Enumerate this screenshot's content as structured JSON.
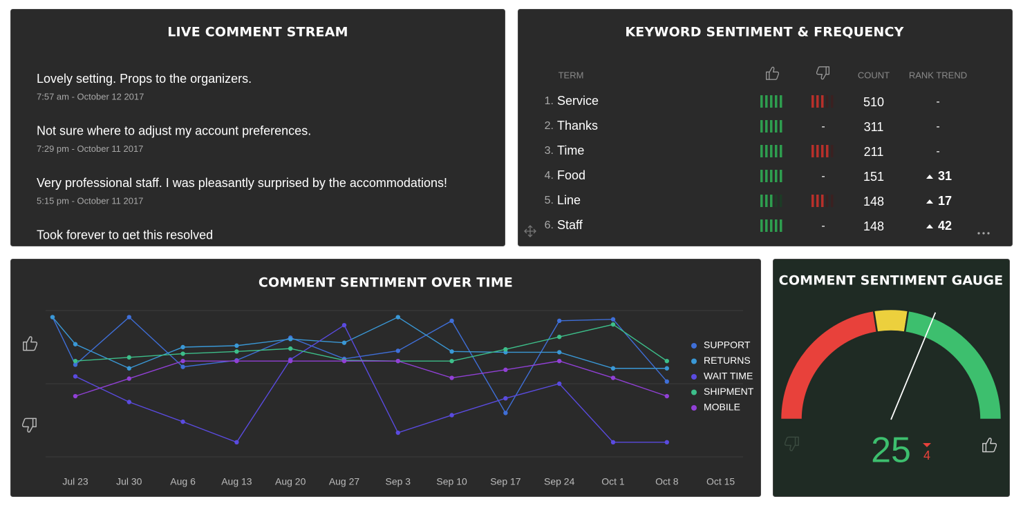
{
  "comment_stream": {
    "title": "LIVE COMMENT STREAM",
    "comments": [
      {
        "text": "Lovely setting. Props to the organizers.",
        "time": "7:57 am - October 12 2017"
      },
      {
        "text": "Not sure where to adjust my account preferences.",
        "time": "7:29 pm - October 11 2017"
      },
      {
        "text": "Very professional staff. I was pleasantly surprised by the accommodations!",
        "time": "5:15 pm - October 11 2017"
      },
      {
        "text": "Took forever to get this resolved",
        "time": ""
      }
    ]
  },
  "keyword_table": {
    "title": "KEYWORD SENTIMENT & FREQUENCY",
    "headers": {
      "term": "TERM",
      "count": "COUNT",
      "rank_trend": "RANK TREND"
    },
    "segments": 5,
    "rows": [
      {
        "rank": "1.",
        "term": "Service",
        "positive": 5,
        "negative": 3,
        "count": 510,
        "rank_trend": "-"
      },
      {
        "rank": "2.",
        "term": "Thanks",
        "positive": 5,
        "negative": "-",
        "count": 311,
        "rank_trend": "-"
      },
      {
        "rank": "3.",
        "term": "Time",
        "positive": 5,
        "negative": 4,
        "count": 211,
        "rank_trend": "-"
      },
      {
        "rank": "4.",
        "term": "Food",
        "positive": 5,
        "negative": "-",
        "count": 151,
        "rank_trend": 31
      },
      {
        "rank": "5.",
        "term": "Line",
        "positive": 3,
        "negative": 3,
        "count": 148,
        "rank_trend": 17
      },
      {
        "rank": "6.",
        "term": "Staff",
        "positive": 5,
        "negative": "-",
        "count": 148,
        "rank_trend": 42
      }
    ]
  },
  "chart_data": {
    "type": "line",
    "title": "COMMENT SENTIMENT OVER TIME",
    "categories": [
      null,
      "Jul 23",
      "Jul 30",
      "Aug 6",
      "Aug 13",
      "Aug 20",
      "Aug 27",
      "Sep 3",
      "Sep 10",
      "Sep 17",
      "Sep 24",
      "Oct 1",
      "Oct 8",
      "Oct 15"
    ],
    "ylim": [
      -1,
      1
    ],
    "yticks": [
      -1,
      0,
      1
    ],
    "grid": true,
    "series": [
      {
        "name": "SUPPORT",
        "color": "#3f6fd8",
        "values": [
          0.91,
          0.26,
          0.91,
          0.23,
          0.32,
          0.63,
          0.34,
          0.45,
          0.86,
          -0.4,
          0.86,
          0.88,
          0.03,
          null
        ]
      },
      {
        "name": "RETURNS",
        "color": "#3a98d6",
        "values": [
          0.91,
          0.54,
          0.21,
          0.5,
          0.52,
          0.61,
          0.56,
          0.91,
          0.44,
          0.43,
          0.43,
          0.21,
          0.21,
          null
        ]
      },
      {
        "name": "WAIT TIME",
        "color": "#5a4be0",
        "values": [
          null,
          0.1,
          -0.25,
          -0.52,
          -0.8,
          0.33,
          0.8,
          -0.67,
          -0.43,
          -0.2,
          0,
          -0.8,
          -0.8,
          null
        ]
      },
      {
        "name": "SHIPMENT",
        "color": "#3dbf8a",
        "values": [
          null,
          0.31,
          0.36,
          0.41,
          0.44,
          0.48,
          0.32,
          0.31,
          0.31,
          0.47,
          0.64,
          0.81,
          0.31,
          null
        ]
      },
      {
        "name": "MOBILE",
        "color": "#9140d6",
        "values": [
          null,
          -0.17,
          0.07,
          0.31,
          0.31,
          0.31,
          0.31,
          0.31,
          0.08,
          0.19,
          0.31,
          0.08,
          -0.17,
          null
        ]
      }
    ]
  },
  "gauge": {
    "title": "COMMENT SENTIMENT GAUGE",
    "min": -100,
    "max": 100,
    "value": 25,
    "change": 4,
    "bands": [
      {
        "from": -100,
        "to": -10,
        "color": "#e8413b"
      },
      {
        "from": -10,
        "to": 10,
        "color": "#ecd03d"
      },
      {
        "from": 10,
        "to": 100,
        "color": "#3dbf6e"
      }
    ]
  }
}
